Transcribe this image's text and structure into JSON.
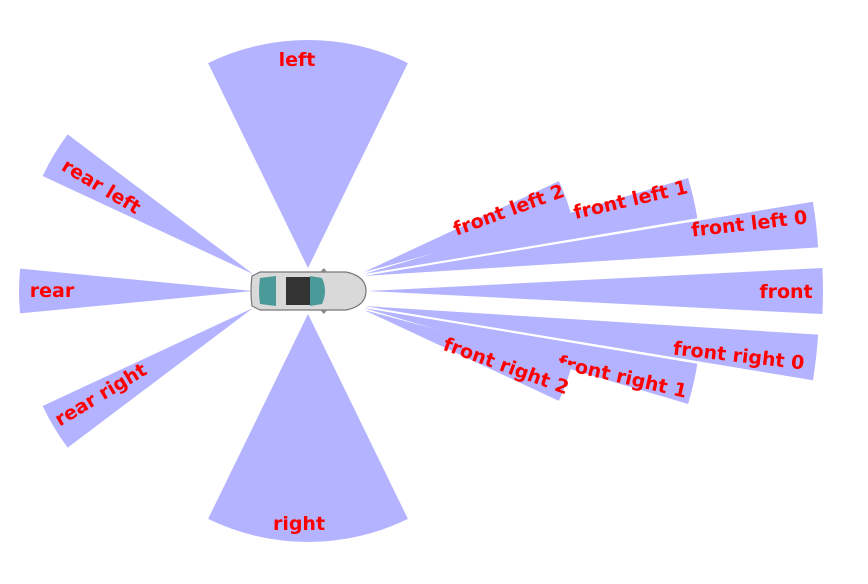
{
  "colors": {
    "sector_fill": "#b3b3ff",
    "label": "#ff0000",
    "car_body": "#d9d9d9",
    "car_glass": "#4a9a9a",
    "car_roof": "#333333"
  },
  "car": {
    "icon": "car-top-view-icon"
  },
  "sectors": [
    {
      "id": "left",
      "label": "left"
    },
    {
      "id": "right",
      "label": "right"
    },
    {
      "id": "rear",
      "label": "rear"
    },
    {
      "id": "rear-left",
      "label": "rear left"
    },
    {
      "id": "rear-right",
      "label": "rear right"
    },
    {
      "id": "front",
      "label": "front"
    },
    {
      "id": "front-left-0",
      "label": "front left 0"
    },
    {
      "id": "front-left-1",
      "label": "front left 1"
    },
    {
      "id": "front-left-2",
      "label": "front left 2"
    },
    {
      "id": "front-right-0",
      "label": "front right 0"
    },
    {
      "id": "front-right-1",
      "label": "front right 1"
    },
    {
      "id": "front-right-2",
      "label": "front right 2"
    }
  ]
}
